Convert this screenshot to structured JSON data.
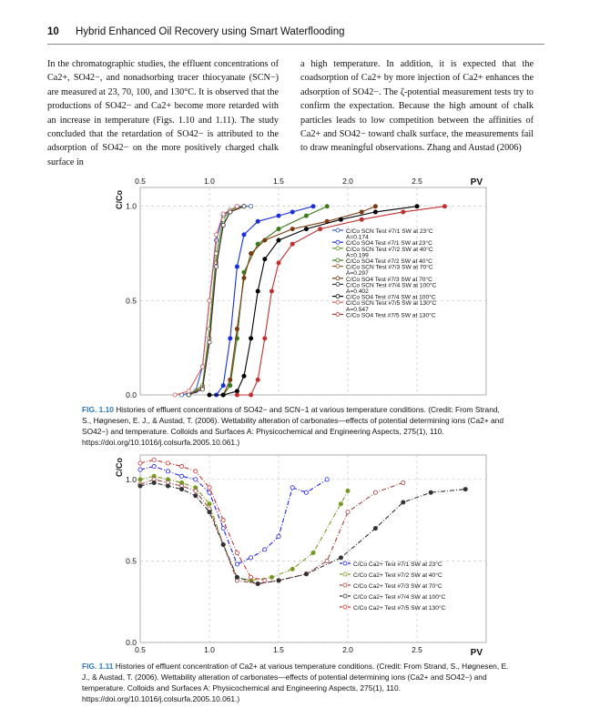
{
  "header": {
    "page_number": "10",
    "book_title": "Hybrid Enhanced Oil Recovery using Smart Waterflooding"
  },
  "body": {
    "left_col": "In the chromatographic studies, the effluent concentrations of Ca2+, SO42−, and nonadsorbing tracer thiocyanate (SCN−) are measured at 23, 70, 100, and 130°C. It is observed that the productions of SO42− and Ca2+ become more retarded with an increase in temperature (Figs. 1.10 and 1.11). The study concluded that the retardation of SO42− is attributed to the adsorption of SO42− on the more positively charged chalk surface in",
    "right_col": "a high temperature. In addition, it is expected that the coadsorption of Ca2+ by more injection of Ca2+ enhances the adsorption of SO42−. The ζ-potential measurement tests try to confirm the expectation. Because the high amount of chalk particles leads to low competition between the affinities of Ca2+ and SO42− toward chalk surface, the measurements fail to draw meaningful observations. Zhang and Austad (2006)"
  },
  "figure1": {
    "caption_label": "FIG. 1.10",
    "caption_text": "Histories of effluent concentrations of SO42− and SCN−1 at various temperature conditions. (Credit: From Strand, S., Høgnesen, E. J., & Austad, T. (2006). Wettability alteration of carbonates—effects of potential determining ions (Ca2+ and SO42−) and temperature. Colloids and Surfaces A: Physicochemical and Engineering Aspects, 275(1), 110. https://doi.org/10.1016/j.colsurfa.2005.10.061.)",
    "ylabel": "C/Co",
    "xlabel": "PV",
    "legend": [
      {
        "label": "C/Co SCN Test #7/1 SW at 23°C",
        "color": "#3355cc"
      },
      {
        "label": "A=0.174",
        "color": ""
      },
      {
        "label": "C/Co SO4 Test #7/1 SW at 23°C",
        "color": "#1a2fd6"
      },
      {
        "label": "C/Co SCN Test #7/2 SW at 40°C",
        "color": "#5a9a2a"
      },
      {
        "label": "A=0.199",
        "color": ""
      },
      {
        "label": "C/Co SO4 Test #7/2 SW at 40°C",
        "color": "#3a7a1a"
      },
      {
        "label": "C/Co SCN Test #7/3 SW at 70°C",
        "color": "#9a5a2a"
      },
      {
        "label": "A=0.297",
        "color": ""
      },
      {
        "label": "C/Co SO4 Test #7/3 SW at 70°C",
        "color": "#7a3a10"
      },
      {
        "label": "C/Co SCN Test #7/4 SW at 100°C",
        "color": "#333333"
      },
      {
        "label": "A=0.402",
        "color": ""
      },
      {
        "label": "C/Co SO4 Test #7/4 SW at 100°C",
        "color": "#000000"
      },
      {
        "label": "C/Co SCN Test #7/5 SW at 130°C",
        "color": "#d06060"
      },
      {
        "label": "A=0.547",
        "color": ""
      },
      {
        "label": "C/Co SO4 Test #7/5 SW at 130°C",
        "color": "#c03030"
      }
    ]
  },
  "figure2": {
    "caption_label": "FIG. 1.11",
    "caption_text": "Histories of effluent concentration of Ca2+ at various temperature conditions. (Credit: From Strand, S., Høgnesen, E. J., & Austad, T. (2006). Wettability alteration of carbonates—effects of potential determining ions (Ca2+ and SO42−) and temperature. Colloids and Surfaces A: Physicochemical and Engineering Aspects, 275(1), 110. https://doi.org/10.1016/j.colsurfa.2005.10.061.)",
    "ylabel": "C/Co",
    "xlabel": "PV",
    "legend": [
      {
        "label": "C/Co Ca2+ Test #7/1 SW at 23°C",
        "color": "#2222dd"
      },
      {
        "label": "C/Co Ca2+ Test #7/2 SW at 40°C",
        "color": "#779922"
      },
      {
        "label": "C/Co Ca2+ Test #7/3 SW at 70°C",
        "color": "#a04040"
      },
      {
        "label": "C/Co Ca2+ Test #7/4 SW at 100°C",
        "color": "#333333"
      },
      {
        "label": "C/Co Ca2+ Test #7/5 SW at 130°C",
        "color": "#cc3333"
      }
    ]
  },
  "chart_data": [
    {
      "type": "line",
      "xlabel": "PV",
      "ylabel": "C/Co",
      "xlim": [
        0.5,
        3.0
      ],
      "ylim": [
        0.0,
        1.1
      ],
      "xticks": [
        "0.5",
        "1.0",
        "1.5",
        "2.0",
        "2.5"
      ],
      "yticks": [
        "0.0",
        "0.5",
        "1.0"
      ],
      "grid": true,
      "legend_position": "right",
      "series": [
        {
          "name": "C/Co SCN Test #7/1 SW at 23°C",
          "color": "#3355cc",
          "x": [
            0.8,
            0.9,
            0.95,
            1.0,
            1.05,
            1.1,
            1.15,
            1.2,
            1.3
          ],
          "y": [
            0.0,
            0.02,
            0.15,
            0.5,
            0.82,
            0.95,
            0.98,
            1.0,
            1.0
          ]
        },
        {
          "name": "C/Co SO4 Test #7/1 SW at 23°C",
          "color": "#1a2fd6",
          "x": [
            1.05,
            1.1,
            1.15,
            1.2,
            1.25,
            1.35,
            1.5,
            1.6,
            1.75
          ],
          "y": [
            0.0,
            0.05,
            0.3,
            0.68,
            0.85,
            0.92,
            0.95,
            0.97,
            1.0
          ]
        },
        {
          "name": "C/Co SCN Test #7/2 SW at 40°C",
          "color": "#5a9a2a",
          "x": [
            0.85,
            0.95,
            1.0,
            1.05,
            1.1,
            1.15,
            1.25
          ],
          "y": [
            0.0,
            0.05,
            0.35,
            0.75,
            0.93,
            0.98,
            1.0
          ]
        },
        {
          "name": "C/Co SO4 Test #7/2 SW at 40°C",
          "color": "#3a7a1a",
          "x": [
            1.1,
            1.15,
            1.2,
            1.25,
            1.35,
            1.5,
            1.7,
            1.85
          ],
          "y": [
            0.0,
            0.05,
            0.3,
            0.65,
            0.8,
            0.88,
            0.95,
            1.0
          ]
        },
        {
          "name": "C/Co SCN Test #7/3 SW at 70°C",
          "color": "#9a5a2a",
          "x": [
            0.85,
            0.95,
            1.0,
            1.05,
            1.1,
            1.15,
            1.25
          ],
          "y": [
            0.0,
            0.04,
            0.3,
            0.7,
            0.9,
            0.97,
            1.0
          ]
        },
        {
          "name": "C/Co SO4 Test #7/3 SW at 70°C",
          "color": "#7a3a10",
          "x": [
            1.1,
            1.15,
            1.2,
            1.25,
            1.3,
            1.4,
            1.6,
            1.85,
            2.1,
            2.2
          ],
          "y": [
            0.0,
            0.08,
            0.35,
            0.62,
            0.75,
            0.82,
            0.88,
            0.92,
            0.97,
            1.0
          ]
        },
        {
          "name": "C/Co SCN Test #7/4 SW at 100°C",
          "color": "#333333",
          "x": [
            0.85,
            0.95,
            1.0,
            1.05,
            1.1,
            1.15,
            1.25
          ],
          "y": [
            0.0,
            0.03,
            0.28,
            0.68,
            0.9,
            0.97,
            1.0
          ]
        },
        {
          "name": "C/Co SO4 Test #7/4 SW at 100°C",
          "color": "#000000",
          "x": [
            1.0,
            1.1,
            1.2,
            1.25,
            1.3,
            1.35,
            1.4,
            1.5,
            1.7,
            1.95,
            2.2,
            2.5
          ],
          "y": [
            0.0,
            0.0,
            0.02,
            0.1,
            0.3,
            0.55,
            0.72,
            0.82,
            0.88,
            0.93,
            0.97,
            1.0
          ]
        },
        {
          "name": "C/Co SCN Test #7/5 SW at 130°C",
          "color": "#d06060",
          "x": [
            0.75,
            0.85,
            0.95,
            1.0,
            1.05,
            1.1,
            1.2
          ],
          "y": [
            0.0,
            0.02,
            0.15,
            0.5,
            0.85,
            0.96,
            1.0
          ]
        },
        {
          "name": "C/Co SO4 Test #7/5 SW at 130°C",
          "color": "#c03030",
          "x": [
            1.2,
            1.3,
            1.35,
            1.4,
            1.45,
            1.5,
            1.6,
            1.8,
            2.1,
            2.4,
            2.7
          ],
          "y": [
            0.0,
            0.0,
            0.08,
            0.3,
            0.55,
            0.7,
            0.8,
            0.88,
            0.93,
            0.97,
            1.0
          ]
        }
      ]
    },
    {
      "type": "line",
      "xlabel": "PV",
      "ylabel": "C/Co",
      "xlim": [
        0.5,
        3.0
      ],
      "ylim": [
        0.0,
        1.15
      ],
      "xticks": [
        "0.5",
        "1.0",
        "1.5",
        "2.0",
        "2.5"
      ],
      "yticks": [
        "0.0",
        "0.5",
        "1.0"
      ],
      "grid": true,
      "legend_position": "bottom-right",
      "series": [
        {
          "name": "C/Co Ca2+ Test #7/1 SW at 23°C",
          "color": "#2222dd",
          "x": [
            0.5,
            0.6,
            0.7,
            0.8,
            0.9,
            1.0,
            1.1,
            1.2,
            1.3,
            1.4,
            1.5,
            1.6,
            1.7,
            1.85
          ],
          "y": [
            1.06,
            1.08,
            1.05,
            1.02,
            1.0,
            0.92,
            0.7,
            0.48,
            0.52,
            0.57,
            0.65,
            0.95,
            0.92,
            1.0
          ]
        },
        {
          "name": "C/Co Ca2+ Test #7/2 SW at 40°C",
          "color": "#779922",
          "x": [
            0.5,
            0.6,
            0.7,
            0.8,
            0.9,
            1.0,
            1.1,
            1.2,
            1.3,
            1.45,
            1.6,
            1.75,
            1.95,
            2.0
          ],
          "y": [
            1.0,
            1.02,
            1.0,
            0.98,
            0.95,
            0.85,
            0.6,
            0.4,
            0.38,
            0.4,
            0.45,
            0.55,
            0.85,
            0.93
          ]
        },
        {
          "name": "C/Co Ca2+ Test #7/3 SW at 70°C",
          "color": "#a04040",
          "x": [
            0.5,
            0.6,
            0.7,
            0.8,
            0.9,
            1.0,
            1.1,
            1.2,
            1.35,
            1.5,
            1.7,
            1.85,
            2.0,
            2.2,
            2.4
          ],
          "y": [
            0.97,
            1.0,
            0.98,
            0.96,
            0.93,
            0.82,
            0.6,
            0.38,
            0.36,
            0.38,
            0.42,
            0.5,
            0.8,
            0.92,
            0.98
          ]
        },
        {
          "name": "C/Co Ca2+ Test #7/4 SW at 100°C",
          "color": "#333333",
          "x": [
            0.5,
            0.6,
            0.7,
            0.8,
            0.9,
            1.0,
            1.1,
            1.2,
            1.35,
            1.5,
            1.7,
            1.95,
            2.2,
            2.4,
            2.6,
            2.85
          ],
          "y": [
            0.96,
            0.98,
            0.96,
            0.94,
            0.9,
            0.8,
            0.6,
            0.4,
            0.36,
            0.38,
            0.42,
            0.52,
            0.7,
            0.86,
            0.92,
            0.94
          ]
        },
        {
          "name": "C/Co Ca2+ Test #7/5 SW at 130°C",
          "color": "#cc3333",
          "x": [
            0.5,
            0.6,
            0.7,
            0.8,
            0.9,
            1.0,
            1.1,
            1.2,
            1.3,
            1.4
          ],
          "y": [
            1.1,
            1.12,
            1.1,
            1.08,
            1.05,
            0.95,
            0.75,
            0.55,
            0.4,
            0.38
          ]
        }
      ]
    }
  ]
}
